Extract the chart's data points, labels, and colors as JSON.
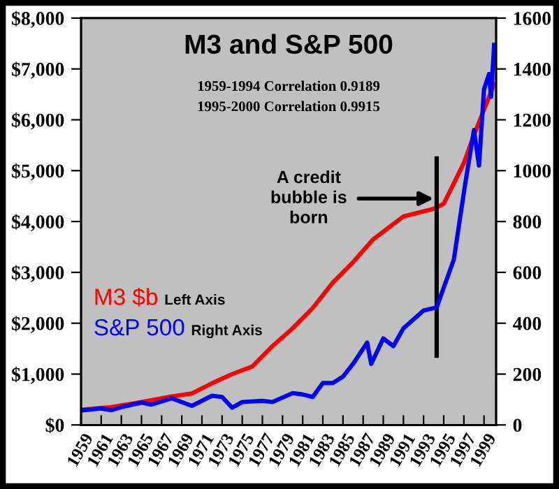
{
  "chart_data": {
    "type": "line",
    "title": "M3 and S&P 500",
    "annotations": [
      "1959-1994 Correlation 0.9189",
      "1995-2000 Correlation 0.9915",
      {
        "text": "A credit\nbubble is\nborn",
        "x": 1994.0,
        "y": 4450
      },
      "Left Axis",
      "Right Axis"
    ],
    "series": [
      {
        "name": "M3 $b",
        "color": "#ff0000",
        "x": [
          1959,
          1962,
          1965,
          1968,
          1970,
          1972,
          1974,
          1976,
          1978,
          1980,
          1982,
          1984,
          1986,
          1988,
          1990,
          1991,
          1992,
          1993,
          1994,
          1995,
          1996,
          1997,
          1998,
          1999,
          2000
        ],
        "values": [
          300,
          350,
          450,
          560,
          620,
          820,
          1000,
          1150,
          1550,
          1900,
          2300,
          2800,
          3200,
          3650,
          3950,
          4100,
          4150,
          4200,
          4250,
          4350,
          4750,
          5150,
          5700,
          6200,
          6700
        ]
      },
      {
        "name": "S&P 500",
        "color": "#0000ff",
        "axis": "y2",
        "x": [
          1959,
          1961,
          1962,
          1963,
          1965,
          1966,
          1968,
          1970,
          1972,
          1973,
          1974,
          1975,
          1977,
          1978,
          1980,
          1981,
          1982,
          1983,
          1984,
          1985,
          1986,
          1987.4,
          1987.8,
          1989,
          1990,
          1991,
          1993,
          1994.3,
          1995,
          1996,
          1997.1,
          1998,
          1998.5,
          1999,
          1999.5,
          1999.7,
          2000
        ],
        "values": [
          57,
          65,
          58,
          70,
          88,
          80,
          105,
          75,
          115,
          110,
          68,
          90,
          95,
          90,
          125,
          120,
          110,
          165,
          165,
          190,
          240,
          324,
          240,
          340,
          310,
          380,
          450,
          462,
          540,
          650,
          940,
          1160,
          1020,
          1320,
          1380,
          1290,
          1495
        ]
      }
    ],
    "xlim": [
      1959,
      2000.2
    ],
    "xticks": [
      1959,
      1961,
      1963,
      1965,
      1967,
      1969,
      1971,
      1973,
      1975,
      1977,
      1979,
      1981,
      1983,
      1985,
      1987,
      1989,
      1991,
      1993,
      1995,
      1997,
      1999
    ],
    "ylim": [
      0,
      8000
    ],
    "yticks": [
      {
        "value": 0,
        "label": "$0"
      },
      {
        "value": 1000,
        "label": "$1,000"
      },
      {
        "value": 2000,
        "label": "$2,000"
      },
      {
        "value": 3000,
        "label": "$3,000"
      },
      {
        "value": 4000,
        "label": "$4,000"
      },
      {
        "value": 5000,
        "label": "$5,000"
      },
      {
        "value": 6000,
        "label": "$6,000"
      },
      {
        "value": 7000,
        "label": "$7,000"
      },
      {
        "value": 8000,
        "label": "$8,000"
      }
    ],
    "y2lim": [
      0,
      1600
    ],
    "y2ticks": [
      0,
      200,
      400,
      600,
      800,
      1000,
      1200,
      1400,
      1600
    ],
    "ref_lines": [
      {
        "axis": "x",
        "value": 1994.3,
        "color": "#000000"
      }
    ],
    "legend": "center left",
    "grid": false,
    "marker": "none",
    "line_style": "solid"
  }
}
